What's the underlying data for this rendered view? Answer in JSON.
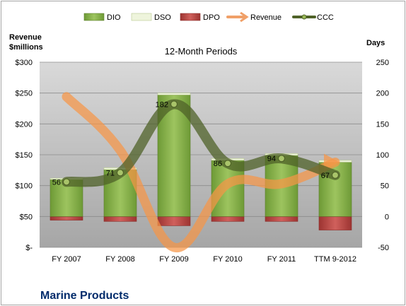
{
  "chart_data": {
    "type": "bar",
    "title": "12-Month Periods",
    "footer_title": "Marine Products",
    "categories": [
      "FY 2007",
      "FY 2008",
      "FY 2009",
      "FY 2010",
      "FY 2011",
      "TTM 9-2012"
    ],
    "left_axis": {
      "label_line1": "Revenue",
      "label_line2": "$millions",
      "range": [
        0,
        300
      ],
      "ticks": [
        "$-",
        "$50",
        "$100",
        "$150",
        "$200",
        "$250",
        "$300"
      ]
    },
    "right_axis": {
      "label": "Days",
      "range": [
        -50,
        250
      ],
      "ticks": [
        "-50",
        "0",
        "50",
        "100",
        "150",
        "200",
        "250"
      ]
    },
    "legend": {
      "position": "top",
      "entries": [
        "DIO",
        "DSO",
        "DPO",
        "Revenue",
        "CCC"
      ]
    },
    "series": [
      {
        "name": "DIO",
        "kind": "bar",
        "axis": "right",
        "color": "#8db356",
        "values": [
          60,
          76,
          197,
          91,
          99,
          88
        ]
      },
      {
        "name": "DSO",
        "kind": "bar",
        "axis": "right",
        "color": "#e6efcf",
        "values": [
          2,
          3,
          3,
          3,
          3,
          3
        ]
      },
      {
        "name": "DPO",
        "kind": "bar",
        "axis": "right",
        "color": "#c0504d",
        "values": [
          -6,
          -8,
          -15,
          -8,
          -8,
          -22
        ]
      },
      {
        "name": "Revenue",
        "kind": "line",
        "axis": "left",
        "color": "#f79646",
        "values": [
          244,
          157,
          0,
          103,
          103,
          138
        ]
      },
      {
        "name": "CCC",
        "kind": "line",
        "axis": "right",
        "color": "#4f6228",
        "values": [
          56,
          71,
          182,
          86,
          94,
          67
        ],
        "labels": [
          "56",
          "71",
          "182",
          "86",
          "94",
          "67"
        ]
      }
    ],
    "grid": true
  }
}
